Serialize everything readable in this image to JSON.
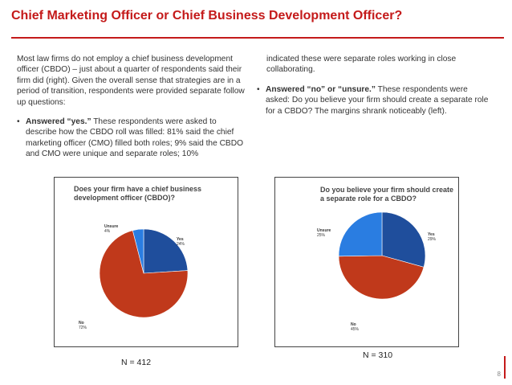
{
  "slide": {
    "title": "Chief Marketing Officer or Chief Business Development Officer?",
    "page_number": "8"
  },
  "left_text": {
    "intro": "Most law firms do not employ a chief business development officer (CBDO) – just about a quarter of respondents said their firm did (right).  Given the overall sense that strategies are in a period of transition, respondents were provided separate follow up questions:",
    "bullet1_bold": "Answered “yes.”",
    "bullet1_text": " These respondents were asked to describe how the CBDO roll was filled: 81% said the chief marketing officer (CMO) filled both roles; 9% said the CBDO and CMO were unique and separate roles; 10%"
  },
  "right_text": {
    "continuation": "indicated these were separate roles working in close collaborating.",
    "bullet2_bold": "Answered “no” or “unsure.”",
    "bullet2_text": " These respondents were asked:  Do you believe your firm should create a separate role for a CBDO? The margins shrank noticeably (left)."
  },
  "bullet_symbol": "•",
  "chart_data": [
    {
      "type": "pie",
      "title": "Does your firm have a chief business development officer (CBDO)?",
      "categories": [
        "Yes",
        "No",
        "Unsure"
      ],
      "values": [
        24,
        72,
        4
      ],
      "value_labels": [
        "24%",
        "72%",
        "4%"
      ],
      "colors": [
        "#1f4e9c",
        "#c0391b",
        "#2a7de1"
      ],
      "note": "N = 412"
    },
    {
      "type": "pie",
      "title": "Do you believe your firm should create a separate role for a CBDO?",
      "categories": [
        "Yes",
        "No",
        "Unsure"
      ],
      "values": [
        29,
        45,
        25
      ],
      "value_labels": [
        "29%",
        "45%",
        "25%"
      ],
      "colors": [
        "#1f4e9c",
        "#c0391b",
        "#2a7de1"
      ],
      "note": "N = 310"
    }
  ]
}
